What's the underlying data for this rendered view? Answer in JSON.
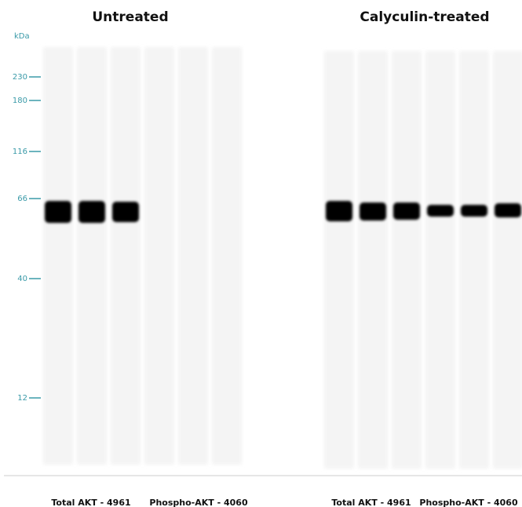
{
  "panels": [
    {
      "title": "Untreated",
      "lane_groups": [
        "Total AKT - 4961",
        "Phospho-AKT - 4060"
      ]
    },
    {
      "title": "Calyculin-treated",
      "lane_groups": [
        "Total AKT - 4961",
        "Phospho-AKT - 4060"
      ]
    }
  ],
  "markers": {
    "unit": "kDa",
    "labels": [
      "230",
      "180",
      "116",
      "66",
      "40",
      "12"
    ]
  }
}
